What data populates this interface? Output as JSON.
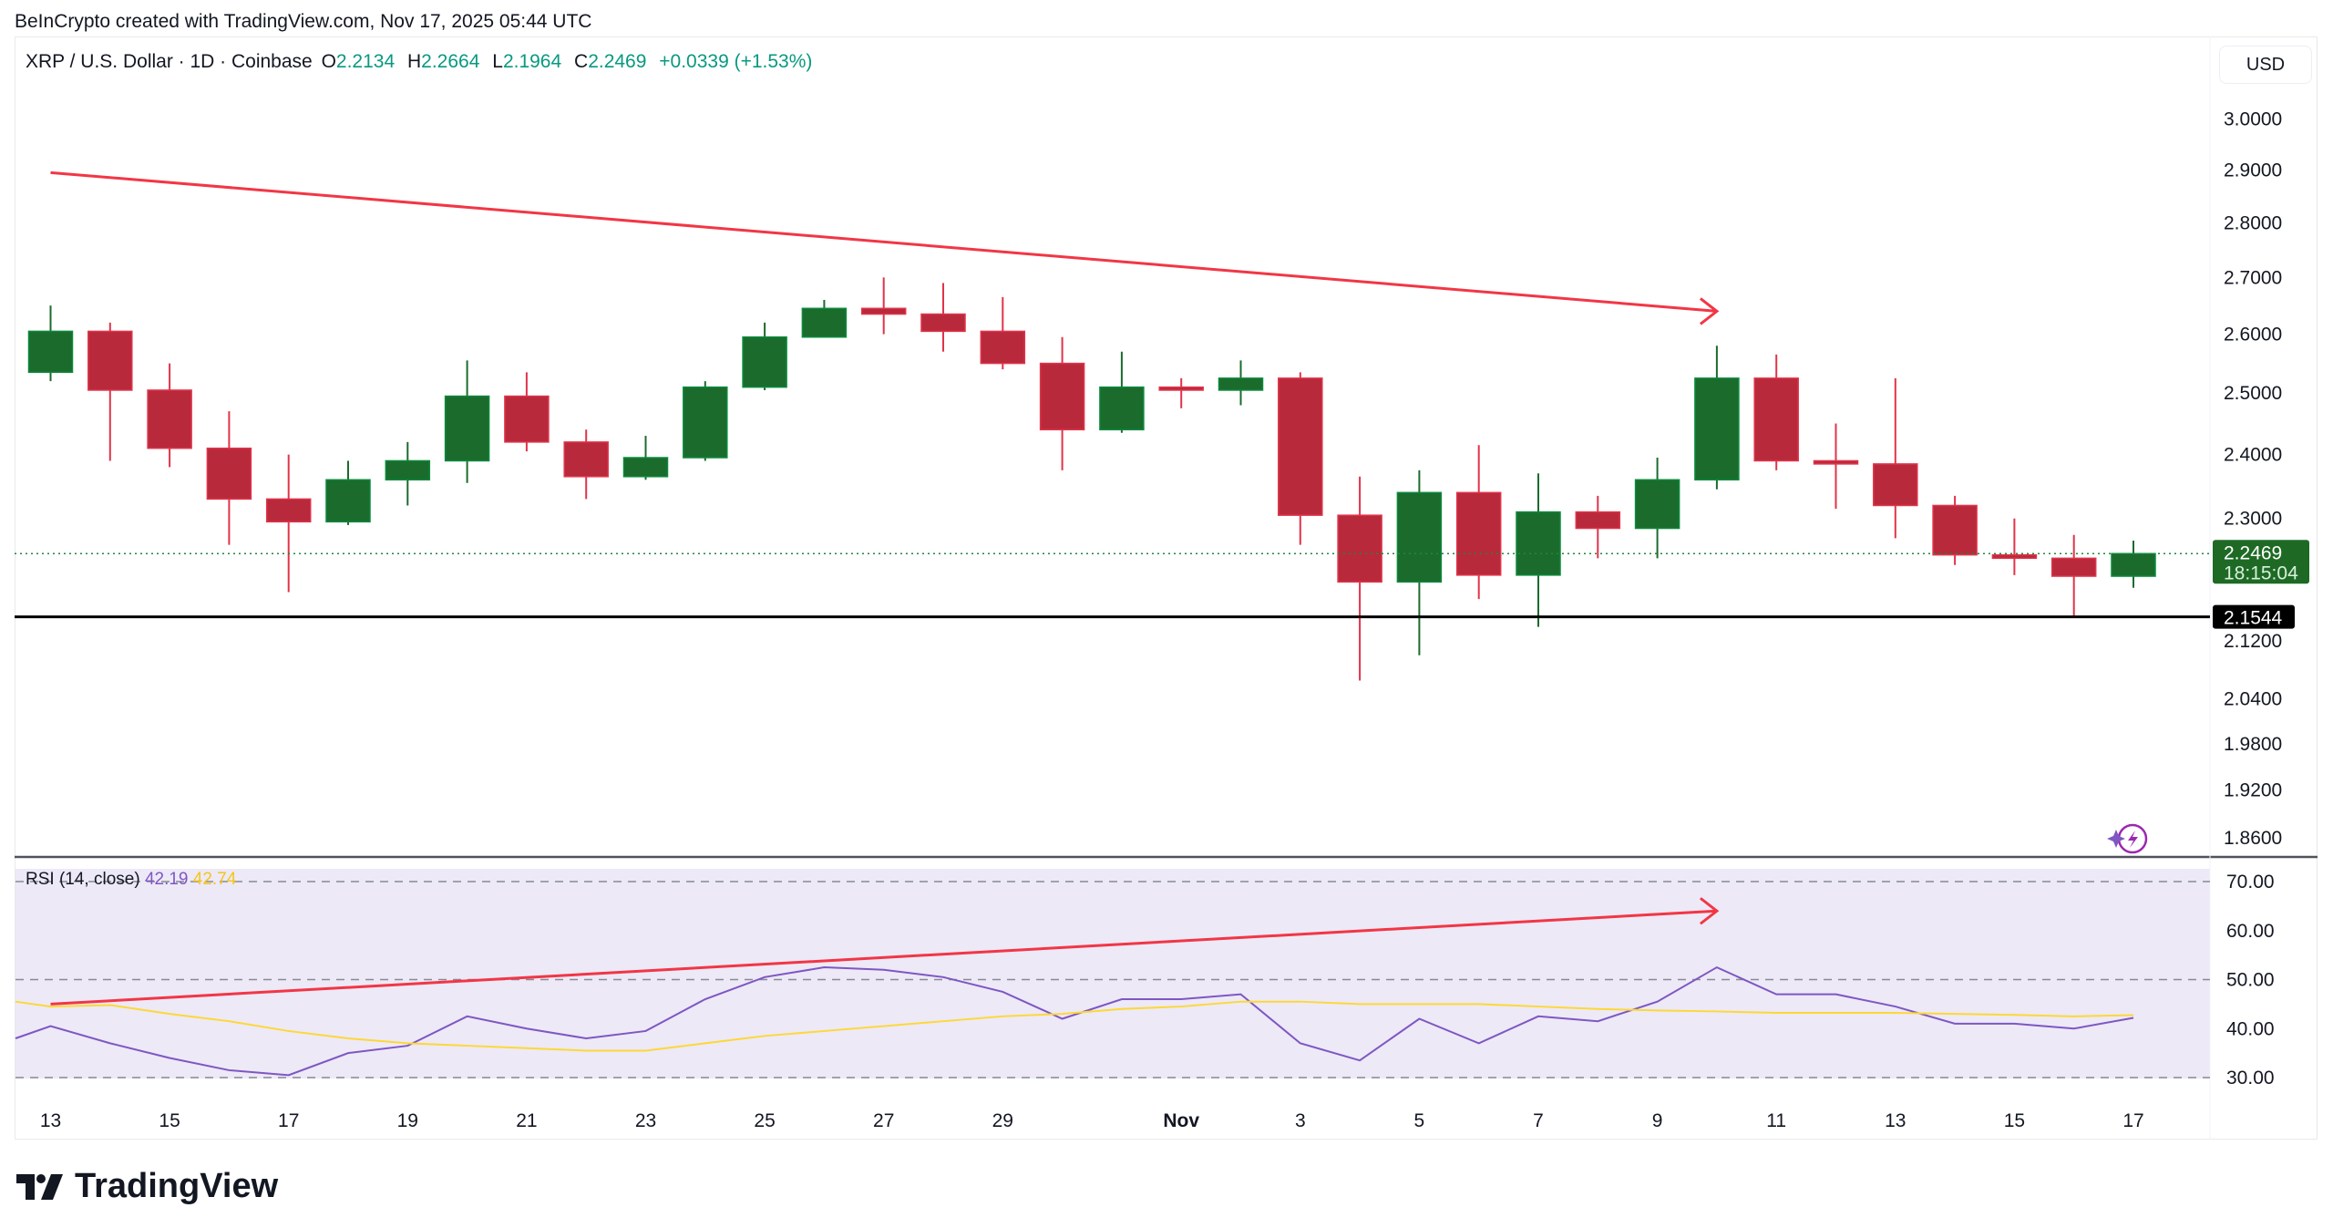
{
  "credit": "BeInCrypto created with TradingView.com, Nov 17, 2025 05:44 UTC",
  "legend": {
    "symbol": "XRP / U.S. Dollar · 1D · Coinbase",
    "o_label": "O",
    "o": "2.2134",
    "h_label": "H",
    "h": "2.2664",
    "l_label": "L",
    "l": "2.1964",
    "c_label": "C",
    "c": "2.2469",
    "change": "+0.0339 (+1.53%)"
  },
  "currency": "USD",
  "price_axis": [
    "3.0000",
    "2.9000",
    "2.8000",
    "2.7000",
    "2.6000",
    "2.5000",
    "2.4000",
    "2.3000",
    "2.1200",
    "2.0400",
    "1.9800",
    "1.9200",
    "1.8600"
  ],
  "last_price": {
    "value": "2.2469",
    "countdown": "18:15:04"
  },
  "support_level": {
    "value": 2.1544,
    "label": "2.1544"
  },
  "rsi": {
    "title": "RSI (14, close)",
    "value": "42.19",
    "ma_value": "42.74",
    "axis": [
      "70.00",
      "60.00",
      "50.00",
      "40.00",
      "30.00"
    ]
  },
  "x_axis": [
    {
      "i": 0,
      "label": "13"
    },
    {
      "i": 2,
      "label": "15"
    },
    {
      "i": 4,
      "label": "17"
    },
    {
      "i": 6,
      "label": "19"
    },
    {
      "i": 8,
      "label": "21"
    },
    {
      "i": 10,
      "label": "23"
    },
    {
      "i": 12,
      "label": "25"
    },
    {
      "i": 14,
      "label": "27"
    },
    {
      "i": 16,
      "label": "29"
    },
    {
      "i": 19,
      "label": "Nov"
    },
    {
      "i": 21,
      "label": "3"
    },
    {
      "i": 23,
      "label": "5"
    },
    {
      "i": 25,
      "label": "7"
    },
    {
      "i": 27,
      "label": "9"
    },
    {
      "i": 29,
      "label": "11"
    },
    {
      "i": 31,
      "label": "13"
    },
    {
      "i": 33,
      "label": "15"
    },
    {
      "i": 35,
      "label": "17"
    }
  ],
  "brand": "TradingView",
  "colors": {
    "up": "#1b6b2d",
    "down": "#b8293b",
    "trend": "#f23645",
    "rsi": "#7e57c2",
    "rsi_ma": "#fdd835",
    "rsi_bg": "#ede9f7"
  },
  "chart_data": {
    "type": "candlestick",
    "dates": [
      "Oct 13",
      "Oct 14",
      "Oct 15",
      "Oct 16",
      "Oct 17",
      "Oct 18",
      "Oct 19",
      "Oct 20",
      "Oct 21",
      "Oct 22",
      "Oct 23",
      "Oct 24",
      "Oct 25",
      "Oct 26",
      "Oct 27",
      "Oct 28",
      "Oct 29",
      "Oct 30",
      "Oct 31",
      "Nov 1",
      "Nov 2",
      "Nov 3",
      "Nov 4",
      "Nov 5",
      "Nov 6",
      "Nov 7",
      "Nov 8",
      "Nov 9",
      "Nov 10",
      "Nov 11",
      "Nov 12",
      "Nov 13",
      "Nov 14",
      "Nov 15",
      "Nov 16",
      "Nov 17"
    ],
    "ohlc": [
      [
        2.535,
        2.65,
        2.52,
        2.605
      ],
      [
        2.605,
        2.62,
        2.39,
        2.505
      ],
      [
        2.505,
        2.55,
        2.38,
        2.41
      ],
      [
        2.41,
        2.47,
        2.26,
        2.33
      ],
      [
        2.33,
        2.4,
        2.19,
        2.295
      ],
      [
        2.295,
        2.39,
        2.29,
        2.36
      ],
      [
        2.36,
        2.42,
        2.32,
        2.39
      ],
      [
        2.39,
        2.555,
        2.355,
        2.495
      ],
      [
        2.495,
        2.535,
        2.405,
        2.42
      ],
      [
        2.42,
        2.44,
        2.33,
        2.365
      ],
      [
        2.365,
        2.43,
        2.36,
        2.395
      ],
      [
        2.395,
        2.52,
        2.39,
        2.51
      ],
      [
        2.51,
        2.62,
        2.505,
        2.595
      ],
      [
        2.595,
        2.66,
        2.595,
        2.645
      ],
      [
        2.645,
        2.7,
        2.6,
        2.635
      ],
      [
        2.635,
        2.69,
        2.57,
        2.605
      ],
      [
        2.605,
        2.665,
        2.54,
        2.55
      ],
      [
        2.55,
        2.595,
        2.375,
        2.44
      ],
      [
        2.44,
        2.57,
        2.435,
        2.51
      ],
      [
        2.51,
        2.525,
        2.475,
        2.505
      ],
      [
        2.505,
        2.555,
        2.48,
        2.525
      ],
      [
        2.525,
        2.535,
        2.26,
        2.305
      ],
      [
        2.305,
        2.365,
        2.065,
        2.205
      ],
      [
        2.205,
        2.375,
        2.1,
        2.34
      ],
      [
        2.34,
        2.415,
        2.18,
        2.215
      ],
      [
        2.215,
        2.37,
        2.14,
        2.31
      ],
      [
        2.31,
        2.335,
        2.24,
        2.285
      ],
      [
        2.285,
        2.395,
        2.24,
        2.36
      ],
      [
        2.36,
        2.58,
        2.345,
        2.525
      ],
      [
        2.525,
        2.565,
        2.375,
        2.39
      ],
      [
        2.39,
        2.45,
        2.315,
        2.385
      ],
      [
        2.385,
        2.525,
        2.27,
        2.32
      ],
      [
        2.32,
        2.335,
        2.23,
        2.245
      ],
      [
        2.245,
        2.3,
        2.215,
        2.24
      ],
      [
        2.24,
        2.275,
        2.155,
        2.2134
      ],
      [
        2.2134,
        2.2664,
        2.1964,
        2.2469
      ]
    ],
    "rsi": [
      40.5,
      37,
      34,
      31.5,
      30.5,
      35,
      36.5,
      42.5,
      40,
      38,
      39.5,
      46,
      50.5,
      52.5,
      52,
      50.5,
      47.5,
      42,
      46,
      46,
      47,
      37,
      33.5,
      42,
      37,
      42.5,
      41.5,
      45.5,
      52.5,
      47,
      47,
      44.5,
      41,
      41,
      40,
      42.19
    ],
    "rsi_ma": [
      44.5,
      44.8,
      43,
      41.5,
      39.5,
      38,
      37,
      36.5,
      36,
      35.5,
      35.5,
      37,
      38.5,
      39.5,
      40.5,
      41.5,
      42.5,
      43,
      44,
      44.5,
      45.5,
      45.5,
      45,
      45,
      45,
      44.5,
      44,
      43.7,
      43.5,
      43.2,
      43.2,
      43.2,
      43,
      42.8,
      42.5,
      42.74
    ],
    "price_trendline": {
      "from": {
        "i": 0,
        "price": 2.895
      },
      "to": {
        "i": 28,
        "price": 2.64
      }
    },
    "rsi_trendline": {
      "from": {
        "i": 0,
        "value": 45
      },
      "to": {
        "i": 28,
        "value": 64
      }
    },
    "rsi_levels": [
      70,
      50,
      30
    ],
    "ylim_price": [
      1.86,
      3.0
    ],
    "ylim_rsi": [
      30,
      70
    ]
  }
}
